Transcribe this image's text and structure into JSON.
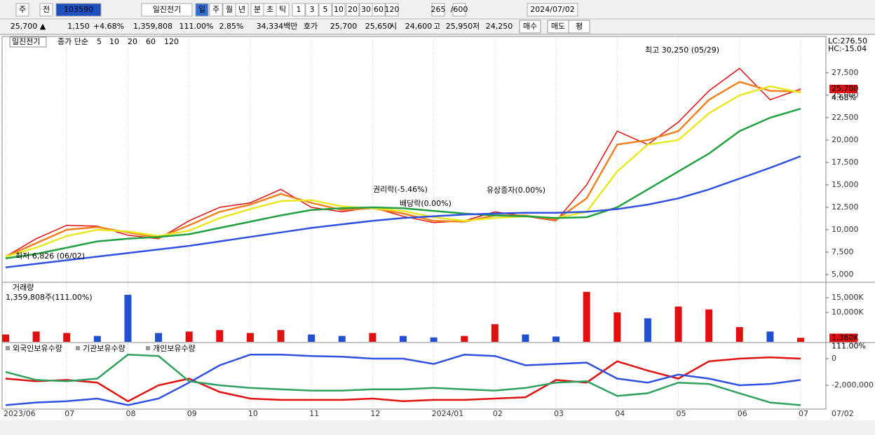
{
  "toolbar": {
    "items": [
      "주",
      "전",
      "103590",
      "일진전기",
      "일",
      "주",
      "월",
      "년",
      "분",
      "초",
      "틱",
      "1",
      "3",
      "5",
      "10",
      "20",
      "30",
      "60",
      "120",
      "265",
      "/600",
      "2024/07/02"
    ]
  },
  "quote_bar": {
    "items": [
      "25,700 ▲",
      "1,150",
      "+4.68%",
      "1,359,808",
      "111.00%",
      "2.85%",
      "34,334백만",
      "호가",
      "25,700",
      "25,650",
      "시",
      "24,600",
      "고",
      "25,950",
      "저",
      "24,250",
      "매수",
      "매도",
      "평"
    ]
  },
  "scroll_label": "07/02",
  "chart_data": [
    {
      "type": "line",
      "title": "일진전기",
      "legend_title": "종가 단순",
      "categories": [
        "2023/06",
        null,
        "07",
        null,
        "08",
        null,
        "09",
        null,
        "10",
        null,
        "11",
        null,
        "12",
        null,
        "2024/01",
        null,
        "02",
        null,
        "03",
        null,
        "04",
        null,
        "05",
        null,
        "06",
        null,
        "07"
      ],
      "series": [
        {
          "name": "5",
          "color": "#e01010",
          "values": [
            7000,
            9000,
            10500,
            10400,
            9400,
            9000,
            11000,
            12500,
            13000,
            14500,
            12500,
            12000,
            12500,
            11500,
            10800,
            11000,
            12000,
            11500,
            11000,
            15000,
            21000,
            19500,
            22000,
            25500,
            28000,
            24500,
            25700
          ]
        },
        {
          "name": "10",
          "color": "#f08020",
          "values": [
            7000,
            8500,
            10000,
            10300,
            9700,
            9100,
            10500,
            12000,
            12800,
            14000,
            13000,
            12200,
            12400,
            11800,
            11000,
            10900,
            11600,
            11600,
            11100,
            13500,
            19500,
            20000,
            21000,
            24500,
            26500,
            25500,
            25400
          ]
        },
        {
          "name": "20",
          "color": "#e8e820",
          "values": [
            7000,
            8000,
            9300,
            10000,
            9800,
            9300,
            9900,
            11300,
            12300,
            13200,
            13300,
            12600,
            12400,
            12100,
            11400,
            11000,
            11300,
            11500,
            11300,
            12000,
            16500,
            19500,
            20000,
            23000,
            25000,
            26000,
            25300
          ]
        },
        {
          "name": "60",
          "color": "#20a040",
          "values": [
            6800,
            7300,
            8000,
            8700,
            9000,
            9200,
            9500,
            10200,
            10900,
            11600,
            12200,
            12400,
            12500,
            12400,
            12100,
            11800,
            11600,
            11500,
            11300,
            11400,
            12500,
            14500,
            16500,
            18500,
            21000,
            22500,
            23500
          ]
        },
        {
          "name": "120",
          "color": "#3050e0",
          "values": [
            5800,
            6200,
            6600,
            7000,
            7400,
            7800,
            8200,
            8700,
            9200,
            9700,
            10200,
            10600,
            11000,
            11300,
            11500,
            11700,
            11800,
            11900,
            11900,
            12000,
            12300,
            12800,
            13500,
            14500,
            15700,
            16900,
            18200
          ]
        }
      ],
      "ylim": [
        4140,
        31480
      ],
      "yticks": [
        {
          "value": 5000,
          "label": "5,000"
        },
        {
          "value": 7500,
          "label": "7,500"
        },
        {
          "value": 10000,
          "label": "10,000"
        },
        {
          "value": 12500,
          "label": "12,500"
        },
        {
          "value": 15000,
          "label": "15,000"
        },
        {
          "value": 17500,
          "label": "17,500"
        },
        {
          "value": 20000,
          "label": "20,000"
        },
        {
          "value": 22500,
          "label": "22,500"
        },
        {
          "value": 25000,
          "label": "25,000"
        },
        {
          "value": 27500,
          "label": "27,500"
        }
      ],
      "grid": false,
      "annotations": [
        "최고 30,250 (05/29)",
        "최저 6,826 (06/02)",
        "권리락(-5.46%)",
        "배당락(0.00%)",
        "유상증자(0.00%)",
        "LC:276.50",
        "HC:-15.04"
      ],
      "current_label": "25,700",
      "current_value": 25700,
      "change_label": "4.68%"
    },
    {
      "type": "bar",
      "title": "거래량",
      "subtitle": "1,359,808주(111.00%)",
      "up_color": "#e01010",
      "down_color": "#2050d0",
      "values": [
        2500,
        3500,
        3000,
        2000,
        16000,
        3000,
        3500,
        4000,
        3000,
        4000,
        2500,
        2000,
        3000,
        2000,
        1500,
        2000,
        6000,
        2500,
        1800,
        17000,
        10000,
        8000,
        12000,
        11000,
        5000,
        3500,
        1360
      ],
      "ylim": [
        0,
        20000
      ],
      "yticks": [
        {
          "value": 10000,
          "label": "10,000K"
        },
        {
          "value": 15000,
          "label": "15,000K"
        }
      ],
      "current_label": "1,360K",
      "ratio_label": "111.00%"
    },
    {
      "type": "line",
      "series": [
        {
          "name": "외국인보유수량",
          "color": "#e01010",
          "values": [
            -1500000,
            -1700000,
            -1600000,
            -1800000,
            -3200000,
            -2000000,
            -1500000,
            -2500000,
            -3000000,
            -3100000,
            -3100000,
            -3100000,
            -3000000,
            -3200000,
            -3100000,
            -3100000,
            -3000000,
            -2900000,
            -1600000,
            -1800000,
            -200000,
            -900000,
            -1500000,
            -200000,
            0,
            100000,
            0
          ]
        },
        {
          "name": "기관보유수량",
          "color": "#3050e0",
          "values": [
            -3500000,
            -3300000,
            -3200000,
            -3000000,
            -3500000,
            -3000000,
            -1800000,
            -500000,
            300000,
            300000,
            200000,
            150000,
            0,
            0,
            -400000,
            300000,
            200000,
            -500000,
            -400000,
            -300000,
            -1500000,
            -1800000,
            -1200000,
            -1500000,
            -2000000,
            -1900000,
            -1600000
          ]
        },
        {
          "name": "개인보유수량",
          "color": "#30a060",
          "values": [
            -1000000,
            -1600000,
            -1700000,
            -1500000,
            300000,
            200000,
            -1700000,
            -2000000,
            -2200000,
            -2300000,
            -2400000,
            -2400000,
            -2300000,
            -2300000,
            -2200000,
            -2300000,
            -2400000,
            -2200000,
            -1800000,
            -1700000,
            -2800000,
            -2600000,
            -1800000,
            -1900000,
            -2600000,
            -3300000,
            -3500000
          ]
        }
      ],
      "ylim": [
        -3740000,
        1160000
      ],
      "yticks": [
        {
          "value": -2000000,
          "label": "-2,000,000"
        },
        0
      ]
    }
  ]
}
